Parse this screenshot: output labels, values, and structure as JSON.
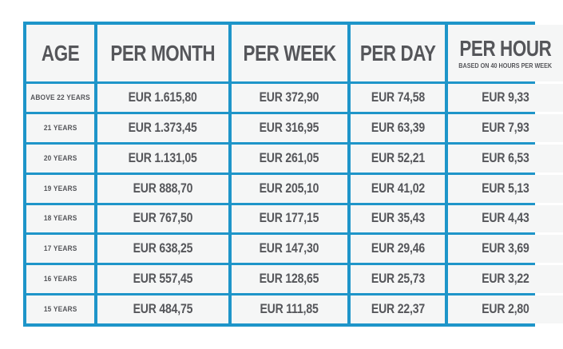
{
  "colors": {
    "border_blue": "#1e95c9",
    "cell_background": "#f5f6f6",
    "text_gray": "#55565a",
    "page_background": "#ffffff"
  },
  "table": {
    "headers": [
      {
        "label": "AGE",
        "subtitle": ""
      },
      {
        "label": "PER MONTH",
        "subtitle": ""
      },
      {
        "label": "PER WEEK",
        "subtitle": ""
      },
      {
        "label": "PER DAY",
        "subtitle": ""
      },
      {
        "label": "PER HOUR",
        "subtitle": "BASED ON 40 HOURS PER WEEK"
      }
    ],
    "rows": [
      {
        "age": "ABOVE 22 YEARS",
        "per_month": "EUR 1.615,80",
        "per_week": "EUR 372,90",
        "per_day": "EUR 74,58",
        "per_hour": "EUR 9,33"
      },
      {
        "age": "21 YEARS",
        "per_month": "EUR 1.373,45",
        "per_week": "EUR 316,95",
        "per_day": "EUR 63,39",
        "per_hour": "EUR 7,93"
      },
      {
        "age": "20 YEARS",
        "per_month": "EUR 1.131,05",
        "per_week": "EUR 261,05",
        "per_day": "EUR 52,21",
        "per_hour": "EUR 6,53"
      },
      {
        "age": "19 YEARS",
        "per_month": "EUR 888,70",
        "per_week": "EUR 205,10",
        "per_day": "EUR 41,02",
        "per_hour": "EUR 5,13"
      },
      {
        "age": "18 YEARS",
        "per_month": "EUR 767,50",
        "per_week": "EUR 177,15",
        "per_day": "EUR 35,43",
        "per_hour": "EUR 4,43"
      },
      {
        "age": "17 YEARS",
        "per_month": "EUR 638,25",
        "per_week": "EUR 147,30",
        "per_day": "EUR 29,46",
        "per_hour": "EUR 3,69"
      },
      {
        "age": "16 YEARS",
        "per_month": "EUR 557,45",
        "per_week": "EUR 128,65",
        "per_day": "EUR 25,73",
        "per_hour": "EUR 3,22"
      },
      {
        "age": "15 YEARS",
        "per_month": "EUR 484,75",
        "per_week": "EUR 111,85",
        "per_day": "EUR 22,37",
        "per_hour": "EUR 2,80"
      }
    ]
  },
  "chart_data": {
    "type": "table",
    "columns": [
      "AGE",
      "PER MONTH",
      "PER WEEK",
      "PER DAY",
      "PER HOUR (BASED ON 40 HOURS PER WEEK)"
    ],
    "rows": [
      [
        "ABOVE 22 YEARS",
        "EUR 1.615,80",
        "EUR 372,90",
        "EUR 74,58",
        "EUR 9,33"
      ],
      [
        "21 YEARS",
        "EUR 1.373,45",
        "EUR 316,95",
        "EUR 63,39",
        "EUR 7,93"
      ],
      [
        "20 YEARS",
        "EUR 1.131,05",
        "EUR 261,05",
        "EUR 52,21",
        "EUR 6,53"
      ],
      [
        "19 YEARS",
        "EUR 888,70",
        "EUR 205,10",
        "EUR 41,02",
        "EUR 5,13"
      ],
      [
        "18 YEARS",
        "EUR 767,50",
        "EUR 177,15",
        "EUR 35,43",
        "EUR 4,43"
      ],
      [
        "17 YEARS",
        "EUR 638,25",
        "EUR 147,30",
        "EUR 29,46",
        "EUR 3,69"
      ],
      [
        "16 YEARS",
        "EUR 557,45",
        "EUR 128,65",
        "EUR 25,73",
        "EUR 3,22"
      ],
      [
        "15 YEARS",
        "EUR 484,75",
        "EUR 111,85",
        "EUR 22,37",
        "EUR 2,80"
      ]
    ],
    "layout_hints": {
      "grid": "on",
      "header_row": true,
      "values_format": "european decimal comma, dot thousands separator"
    }
  }
}
